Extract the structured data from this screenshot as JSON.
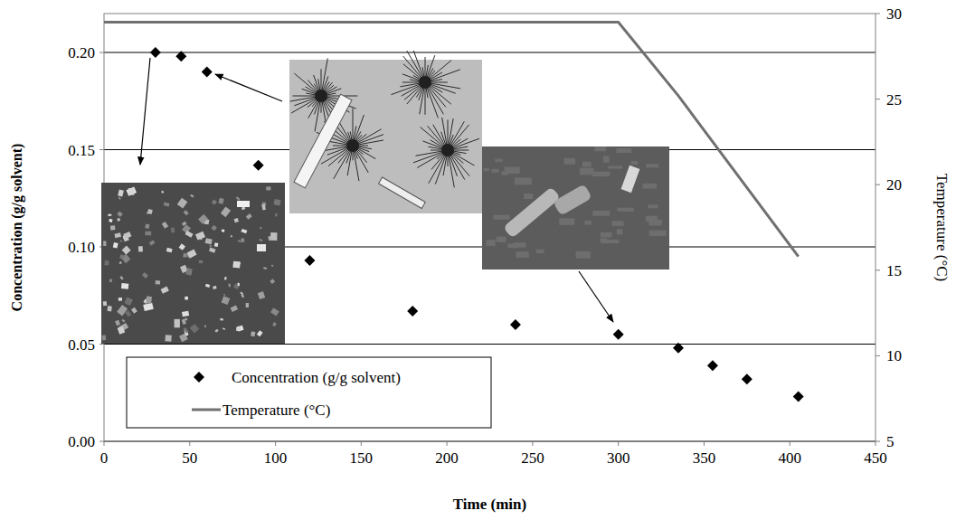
{
  "chart_data": {
    "type": "scatter",
    "xlabel": "Time (min)",
    "ylabel": "Concentration (g/g solvent)",
    "y2label": "Temperature (°C)",
    "xlim": [
      0,
      450
    ],
    "xticks": [
      0,
      50,
      100,
      150,
      200,
      250,
      300,
      350,
      400,
      450
    ],
    "ylim": [
      0,
      0.22
    ],
    "yticks": [
      {
        "value": 0,
        "label": "0.00"
      },
      0.05,
      {
        "value": 0.1,
        "label": "0.10"
      },
      0.15,
      {
        "value": 0.2,
        "label": "0.20"
      }
    ],
    "y2lim": [
      5,
      30
    ],
    "y2ticks": [
      5,
      10,
      15,
      20,
      25,
      30
    ],
    "grid": true,
    "legend": "bottom-left",
    "series": [
      {
        "name": "Concentration (g/g solvent)",
        "type": "scatter",
        "marker": "diamond",
        "color": "#000000",
        "x": [
          30,
          45,
          60,
          90,
          120,
          180,
          240,
          300,
          335,
          355,
          375,
          405
        ],
        "values": [
          0.2,
          0.198,
          0.19,
          0.142,
          0.093,
          0.067,
          0.06,
          0.055,
          0.048,
          0.039,
          0.032,
          0.023
        ]
      },
      {
        "name": "Temperature (°C)",
        "type": "line",
        "axis": "y2",
        "color": "#707070",
        "line_style": "solid",
        "x": [
          0,
          300,
          335,
          405
        ],
        "values": [
          29.5,
          29.5,
          25.2,
          15.8
        ]
      }
    ]
  }
}
